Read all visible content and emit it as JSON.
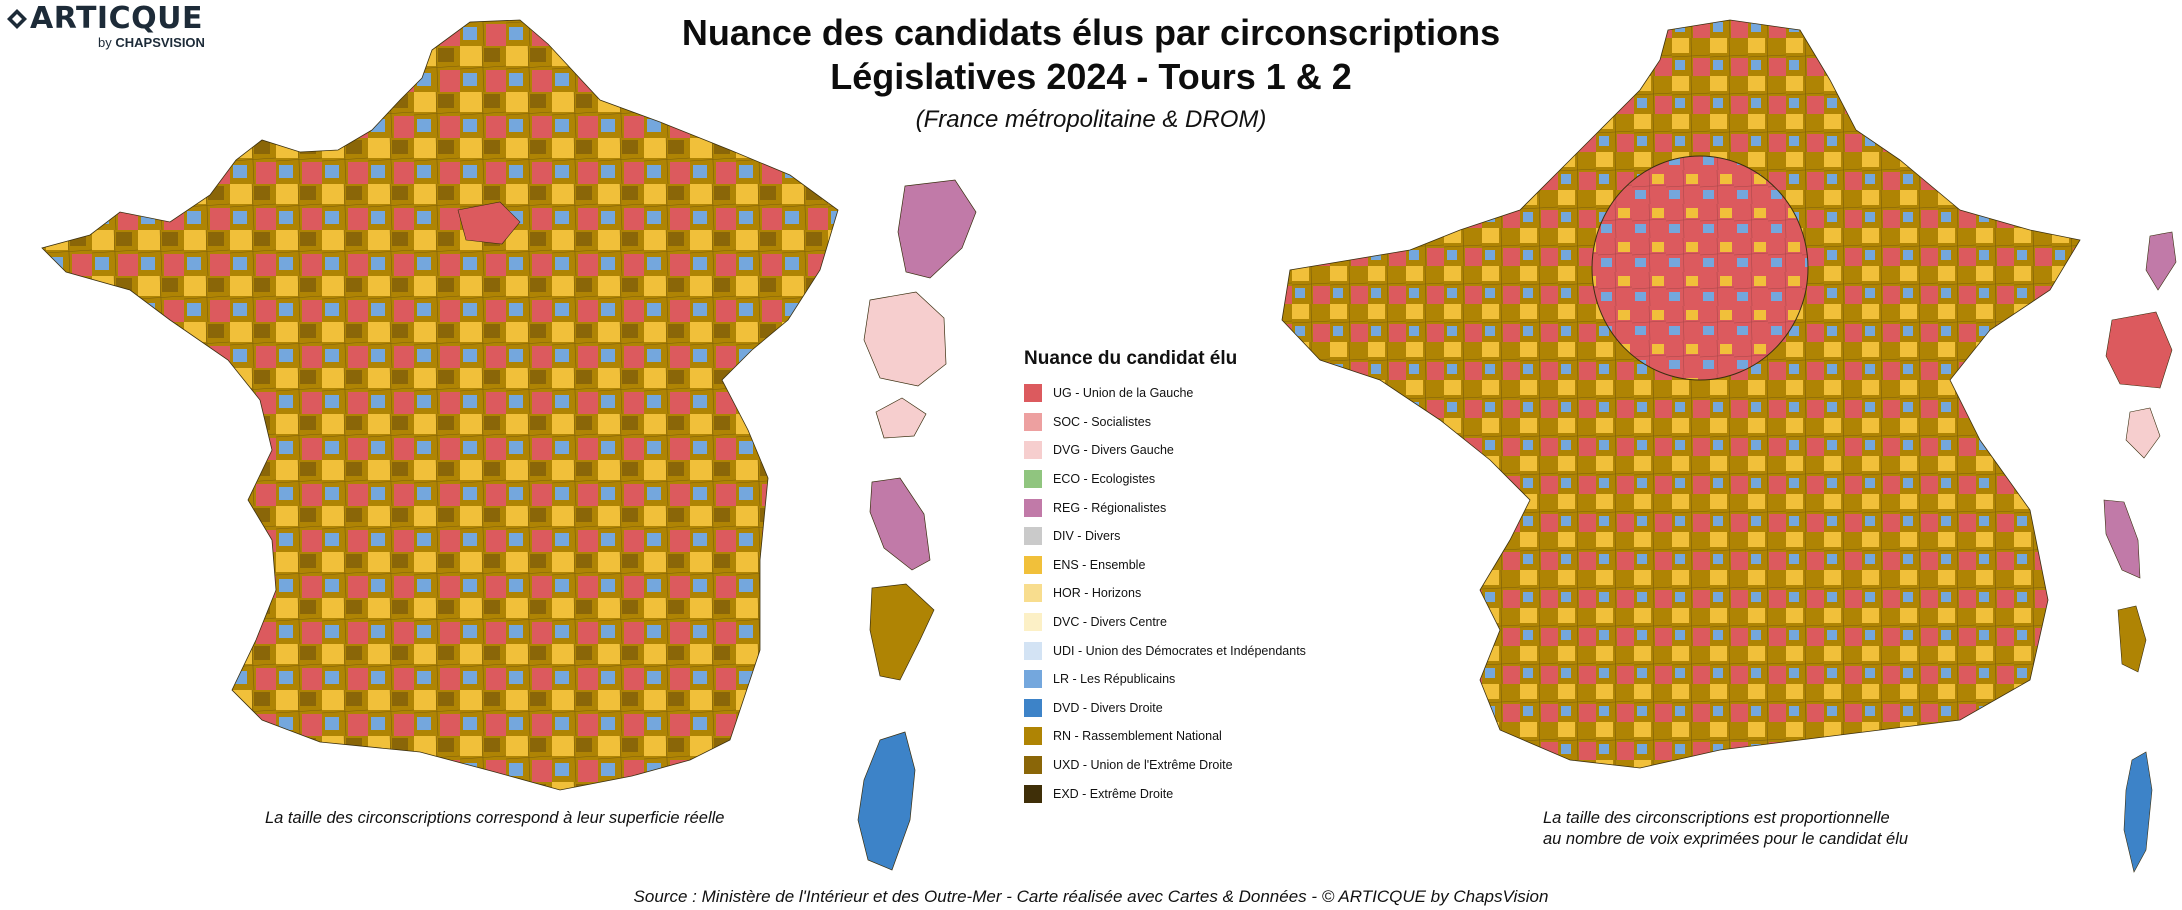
{
  "logo": {
    "name": "ARTICQUE",
    "by_prefix": "by",
    "by_brand": "CHAPSVISION"
  },
  "title": {
    "line1": "Nuance des candidats élus par circonscriptions",
    "line2": "Législatives 2024 - Tours 1 & 2",
    "subtitle": "(France métropolitaine & DROM)"
  },
  "legend": {
    "title": "Nuance du candidat élu",
    "items": [
      {
        "code": "UG",
        "label": "UG - Union de la Gauche",
        "color": "#dc5a5e"
      },
      {
        "code": "SOC",
        "label": "SOC - Socialistes",
        "color": "#eda0a0"
      },
      {
        "code": "DVG",
        "label": "DVG - Divers Gauche",
        "color": "#f6cece"
      },
      {
        "code": "ECO",
        "label": "ECO - Ecologistes",
        "color": "#90c57f"
      },
      {
        "code": "REG",
        "label": "REG - Régionalistes",
        "color": "#c17aa8"
      },
      {
        "code": "DIV",
        "label": "DIV - Divers",
        "color": "#cacaca"
      },
      {
        "code": "ENS",
        "label": "ENS - Ensemble",
        "color": "#f1c03a"
      },
      {
        "code": "HOR",
        "label": "HOR - Horizons",
        "color": "#f8dd8e"
      },
      {
        "code": "DVC",
        "label": "DVC - Divers Centre",
        "color": "#fcf0c6"
      },
      {
        "code": "UDI",
        "label": "UDI - Union des Démocrates et Indépendants",
        "color": "#d3e3f4"
      },
      {
        "code": "LR",
        "label": "LR - Les Républicains",
        "color": "#74a7dd"
      },
      {
        "code": "DVD",
        "label": "DVD - Divers Droite",
        "color": "#3d83c8"
      },
      {
        "code": "RN",
        "label": "RN - Rassemblement National",
        "color": "#af8404"
      },
      {
        "code": "UXD",
        "label": "UXD - Union de l'Extrême Droite",
        "color": "#8a6608"
      },
      {
        "code": "EXD",
        "label": "EXD - Extrême Droite",
        "color": "#3f2f08"
      }
    ]
  },
  "captions": {
    "left": "La taille des circonscriptions correspond à leur superficie réelle",
    "right_line1": "La taille des circonscriptions est proportionnelle",
    "right_line2": "au nombre de voix exprimées pour le candidat élu"
  },
  "source": "Source : Ministère de l'Intérieur et des Outre-Mer - Carte réalisée avec Cartes & Données - © ARTICQUE by ChapsVision",
  "map_layers": {
    "geographic": {
      "dominant_color": "#af8404",
      "secondary_colors": [
        "#f1c03a",
        "#dc5a5e",
        "#74a7dd",
        "#8a6608",
        "#3d83c8"
      ]
    },
    "cartogram": {
      "dominant_color": "#af8404",
      "center_color": "#dc5a5e"
    }
  }
}
